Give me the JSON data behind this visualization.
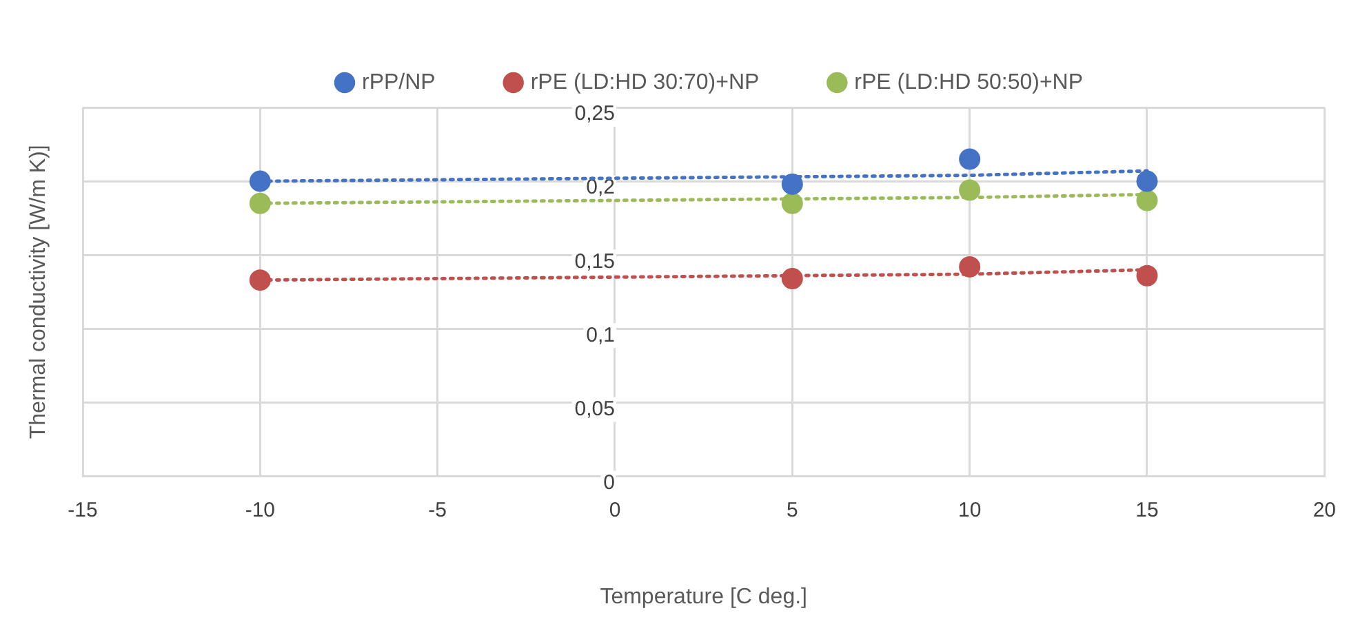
{
  "chart_data": {
    "type": "scatter",
    "xlabel": "Temperature [C deg.]",
    "ylabel": "Thermal conductivity [W/m K)]",
    "x": [
      -10,
      5,
      10,
      15
    ],
    "series": [
      {
        "name": "rPP/NP",
        "color": "#4472c4",
        "values": [
          0.2,
          0.198,
          0.215,
          0.2
        ]
      },
      {
        "name": "rPE (LD:HD 30:70)+NP",
        "color": "#c0504d",
        "values": [
          0.133,
          0.134,
          0.142,
          0.136
        ]
      },
      {
        "name": "rPE (LD:HD 50:50)+NP",
        "color": "#9bbb59",
        "values": [
          0.185,
          0.185,
          0.194,
          0.187
        ]
      },
      {
        "type": "line",
        "color": "#4472c4",
        "values": [
          0.2,
          0.203,
          0.204,
          0.207
        ],
        "line_style": "dotted",
        "marker": "none"
      },
      {
        "type": "line",
        "color": "#c0504d",
        "values": [
          0.133,
          0.136,
          0.137,
          0.14
        ],
        "line_style": "dotted",
        "marker": "none"
      },
      {
        "type": "line",
        "color": "#9bbb59",
        "values": [
          0.185,
          0.188,
          0.189,
          0.191
        ],
        "line_style": "dotted",
        "marker": "none"
      }
    ],
    "xlim": [
      -15,
      20
    ],
    "xticks": [
      -15,
      -10,
      -5,
      0,
      5,
      10,
      15,
      20
    ],
    "ylim": [
      0,
      0.25
    ],
    "yticks": [
      {
        "value": 0,
        "label": "0"
      },
      {
        "value": 0.05,
        "label": "0,05"
      },
      {
        "value": 0.1,
        "label": "0,1"
      },
      {
        "value": 0.15,
        "label": "0,15"
      },
      {
        "value": 0.2,
        "label": "0,2"
      },
      {
        "value": 0.25,
        "label": "0,25"
      }
    ],
    "grid": true,
    "legend": "top",
    "marker": "circle"
  }
}
